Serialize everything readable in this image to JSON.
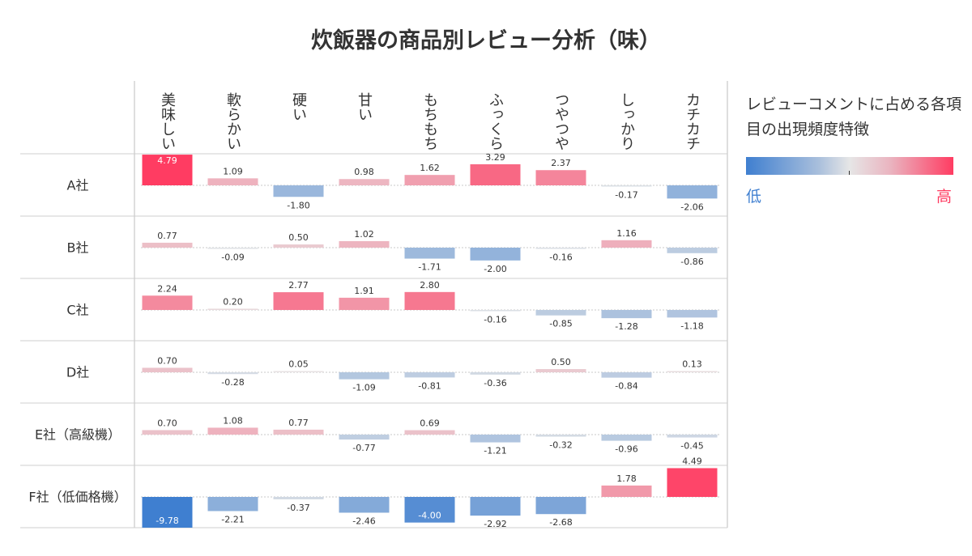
{
  "title": "炊飯器の商品別レビュー分析（味）",
  "legend": {
    "title": "レビューコメントに占める各項目の出現頻度特徴",
    "low_label": "低",
    "high_label": "高",
    "low_color": "#3f7fd0",
    "high_color": "#ff3c62"
  },
  "chart_data": {
    "type": "bar",
    "title": "炊飯器の商品別レビュー分析（味）",
    "categories": [
      "美味しい",
      "軟らかい",
      "硬い",
      "甘い",
      "もちもち",
      "ふっくら",
      "つやつや",
      "しっかり",
      "カチカチ"
    ],
    "series": [
      {
        "name": "A社",
        "values": [
          4.79,
          1.09,
          -1.8,
          0.98,
          1.62,
          3.29,
          2.37,
          -0.17,
          -2.06
        ]
      },
      {
        "name": "B社",
        "values": [
          0.77,
          -0.09,
          0.5,
          1.02,
          -1.71,
          -2.0,
          -0.16,
          1.16,
          -0.86
        ]
      },
      {
        "name": "C社",
        "values": [
          2.24,
          0.2,
          2.77,
          1.91,
          2.8,
          -0.16,
          -0.85,
          -1.28,
          -1.18
        ]
      },
      {
        "name": "D社",
        "values": [
          0.7,
          -0.28,
          0.05,
          -1.09,
          -0.81,
          -0.36,
          0.5,
          -0.84,
          0.13
        ]
      },
      {
        "name": "E社（高級機）",
        "values": [
          0.7,
          1.08,
          0.77,
          -0.77,
          0.69,
          -1.21,
          -0.32,
          -0.96,
          -0.45
        ]
      },
      {
        "name": "F社（低価格機）",
        "values": [
          -9.78,
          -2.21,
          -0.37,
          -2.46,
          -4.0,
          -2.92,
          -2.68,
          1.78,
          4.49
        ]
      }
    ],
    "labels": [
      [
        "4.79",
        "1.09",
        "-1.80",
        "0.98",
        "1.62",
        "3.29",
        "2.37",
        "-0.17",
        "-2.06"
      ],
      [
        "0.77",
        "-0.09",
        "0.50",
        "1.02",
        "-1.71",
        "-2.00",
        "-0.16",
        "1.16",
        "-0.86"
      ],
      [
        "2.24",
        "0.20",
        "2.77",
        "1.91",
        "2.80",
        "-0.16",
        "-0.85",
        "-1.28",
        "-1.18"
      ],
      [
        "0.70",
        "-0.28",
        "0.05",
        "-1.09",
        "-0.81",
        "-0.36",
        "0.50",
        "-0.84",
        "0.13"
      ],
      [
        "0.70",
        "1.08",
        "0.77",
        "-0.77",
        "0.69",
        "-1.21",
        "-0.32",
        "-0.96",
        "-0.45"
      ],
      [
        "-9.78",
        "-2.21",
        "-0.37",
        "-2.46",
        "-4.00",
        "-2.92",
        "-2.68",
        "1.78",
        "4.49"
      ]
    ],
    "color_scale": {
      "low": "#3f7fd0",
      "mid": "#e6e6e6",
      "high": "#ff3c62"
    },
    "grid": true,
    "legend_position": "right"
  }
}
